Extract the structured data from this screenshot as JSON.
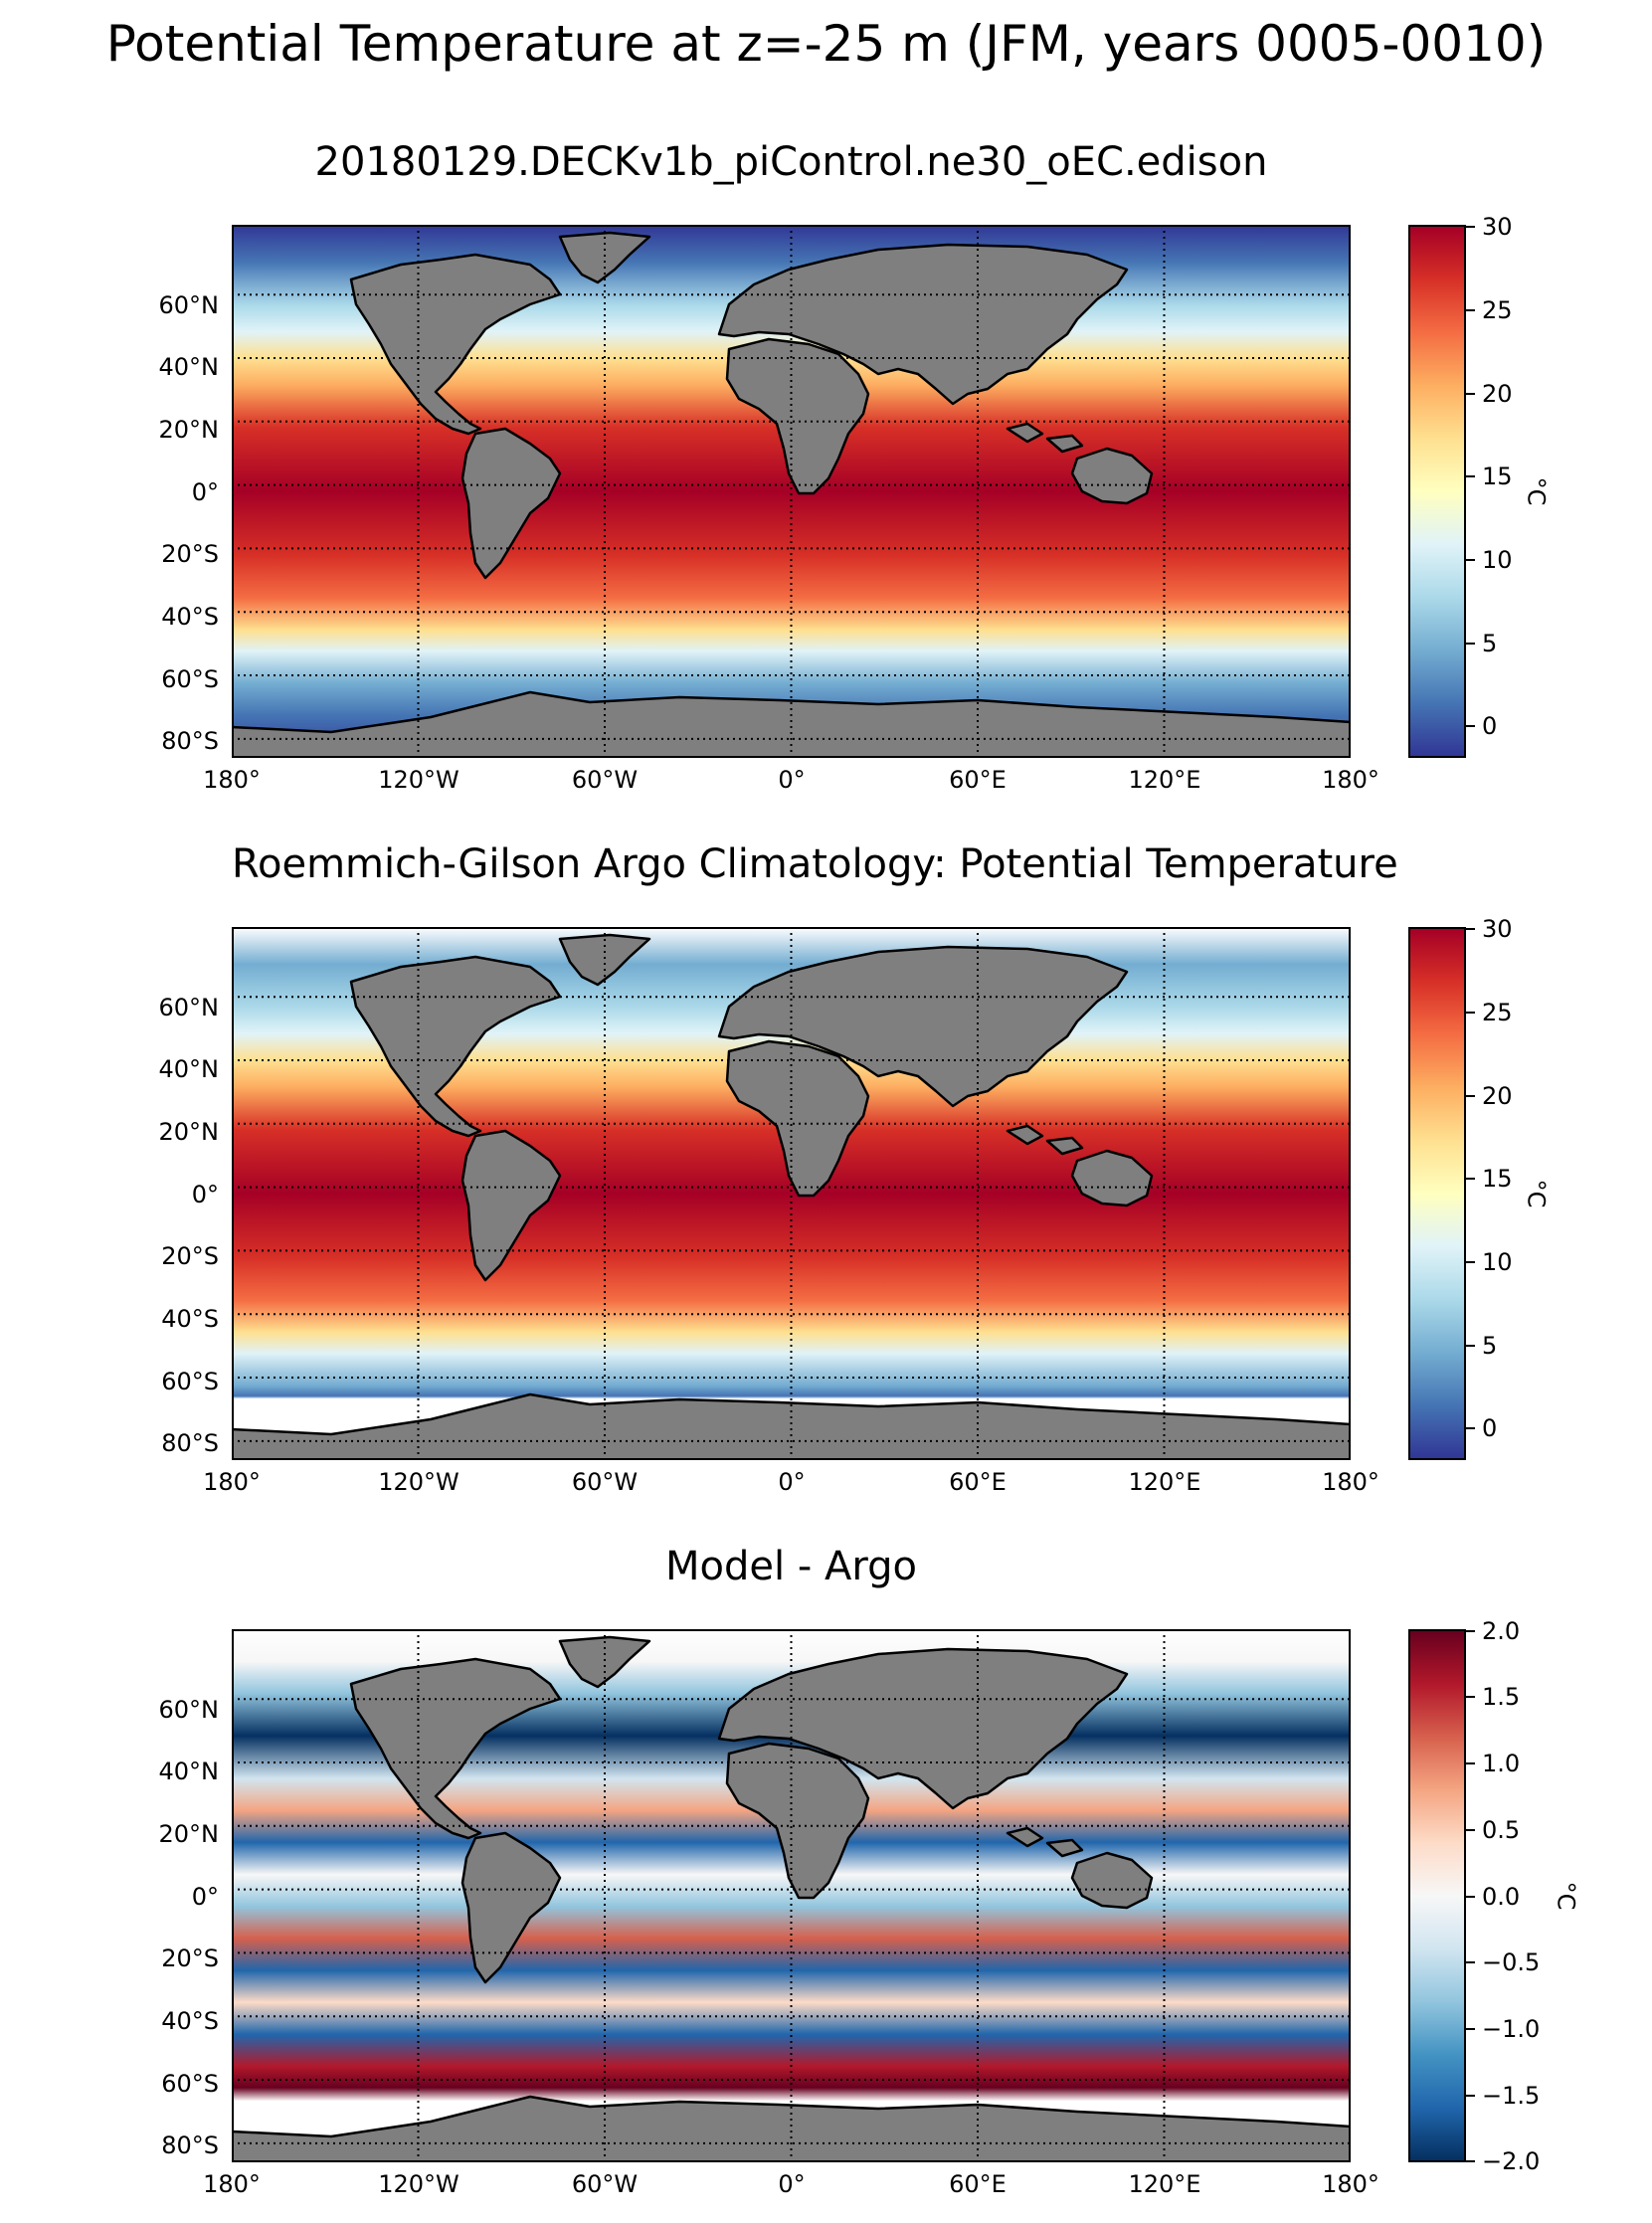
{
  "figure": {
    "suptitle": "Potential Temperature at z=-25 m (JFM, years 0005-0010)"
  },
  "axes": {
    "lat_labels": [
      "60°N",
      "40°N",
      "20°N",
      "0°",
      "20°S",
      "40°S",
      "60°S",
      "80°S"
    ],
    "lon_labels": [
      "180°",
      "120°W",
      "60°W",
      "0°",
      "60°E",
      "120°E",
      "180°"
    ]
  },
  "panels": [
    {
      "title": "20180129.DECKv1b_piControl.ne30_oEC.edison",
      "colorbar": {
        "ticks": [
          "30",
          "25",
          "20",
          "15",
          "10",
          "5",
          "0"
        ],
        "unit": "°C",
        "range": [
          -2,
          30
        ],
        "cmap": "RdYlBu_r"
      }
    },
    {
      "title": "Roemmich-Gilson Argo Climatology: Potential Temperature",
      "colorbar": {
        "ticks": [
          "30",
          "25",
          "20",
          "15",
          "10",
          "5",
          "0"
        ],
        "unit": "°C",
        "range": [
          -2,
          30
        ],
        "cmap": "RdYlBu_r"
      }
    },
    {
      "title": "Model - Argo",
      "colorbar": {
        "ticks": [
          "2.0",
          "1.5",
          "1.0",
          "0.5",
          "0.0",
          "−0.5",
          "−1.0",
          "−1.5",
          "−2.0"
        ],
        "unit": "°C",
        "range": [
          -2.0,
          2.0
        ],
        "cmap": "RdBu_r"
      }
    }
  ],
  "colors": {
    "land": "#7f7f7f",
    "coast": "#000000",
    "missing": "#ffffff"
  }
}
